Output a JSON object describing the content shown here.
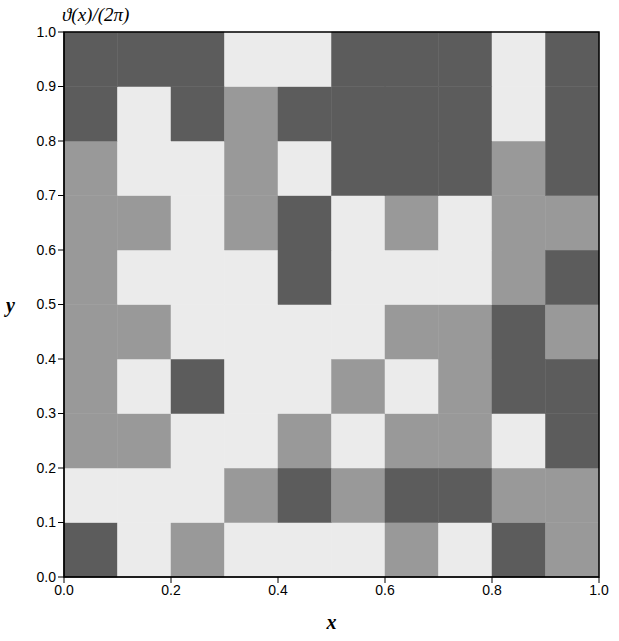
{
  "chart_data": {
    "type": "heatmap",
    "title": "ϑ(x)/(2π)",
    "x_label": "x",
    "y_label": "y",
    "xlim": [
      0,
      1
    ],
    "ylim": [
      0,
      1
    ],
    "xticks": [
      {
        "value": 0,
        "label": "0.0"
      },
      {
        "value": 0.2,
        "label": "0.2"
      },
      {
        "value": 0.4,
        "label": "0.4"
      },
      {
        "value": 0.6,
        "label": "0.6"
      },
      {
        "value": 0.8,
        "label": "0.8"
      },
      {
        "value": 1,
        "label": "1.0"
      }
    ],
    "yticks": [
      {
        "value": 0,
        "label": "0.0"
      },
      {
        "value": 0.1,
        "label": "0.1"
      },
      {
        "value": 0.2,
        "label": "0.2"
      },
      {
        "value": 0.3,
        "label": "0.3"
      },
      {
        "value": 0.4,
        "label": "0.4"
      },
      {
        "value": 0.5,
        "label": "0.5"
      },
      {
        "value": 0.6,
        "label": "0.6"
      },
      {
        "value": 0.7,
        "label": "0.7"
      },
      {
        "value": 0.8,
        "label": "0.8"
      },
      {
        "value": 0.9,
        "label": "0.9"
      },
      {
        "value": 1,
        "label": "1.0"
      }
    ],
    "cells": [
      [
        0.8,
        0.1,
        0.5,
        0.1,
        0.1,
        0.1,
        0.5,
        0.1,
        0.8,
        0.5
      ],
      [
        0.1,
        0.1,
        0.1,
        0.5,
        0.8,
        0.5,
        0.8,
        0.8,
        0.5,
        0.5
      ],
      [
        0.5,
        0.5,
        0.1,
        0.1,
        0.5,
        0.1,
        0.5,
        0.5,
        0.1,
        0.8
      ],
      [
        0.5,
        0.1,
        0.8,
        0.1,
        0.1,
        0.5,
        0.1,
        0.5,
        0.8,
        0.8
      ],
      [
        0.5,
        0.5,
        0.1,
        0.1,
        0.1,
        0.1,
        0.5,
        0.5,
        0.8,
        0.5
      ],
      [
        0.5,
        0.1,
        0.1,
        0.1,
        0.8,
        0.1,
        0.1,
        0.1,
        0.5,
        0.8
      ],
      [
        0.5,
        0.5,
        0.1,
        0.5,
        0.8,
        0.1,
        0.5,
        0.1,
        0.5,
        0.5
      ],
      [
        0.5,
        0.1,
        0.1,
        0.5,
        0.1,
        0.8,
        0.8,
        0.8,
        0.5,
        0.8
      ],
      [
        0.8,
        0.1,
        0.8,
        0.5,
        0.8,
        0.8,
        0.8,
        0.8,
        0.1,
        0.8
      ],
      [
        0.8,
        0.8,
        0.8,
        0.1,
        0.1,
        0.8,
        0.8,
        0.8,
        0.1,
        0.8
      ]
    ]
  }
}
